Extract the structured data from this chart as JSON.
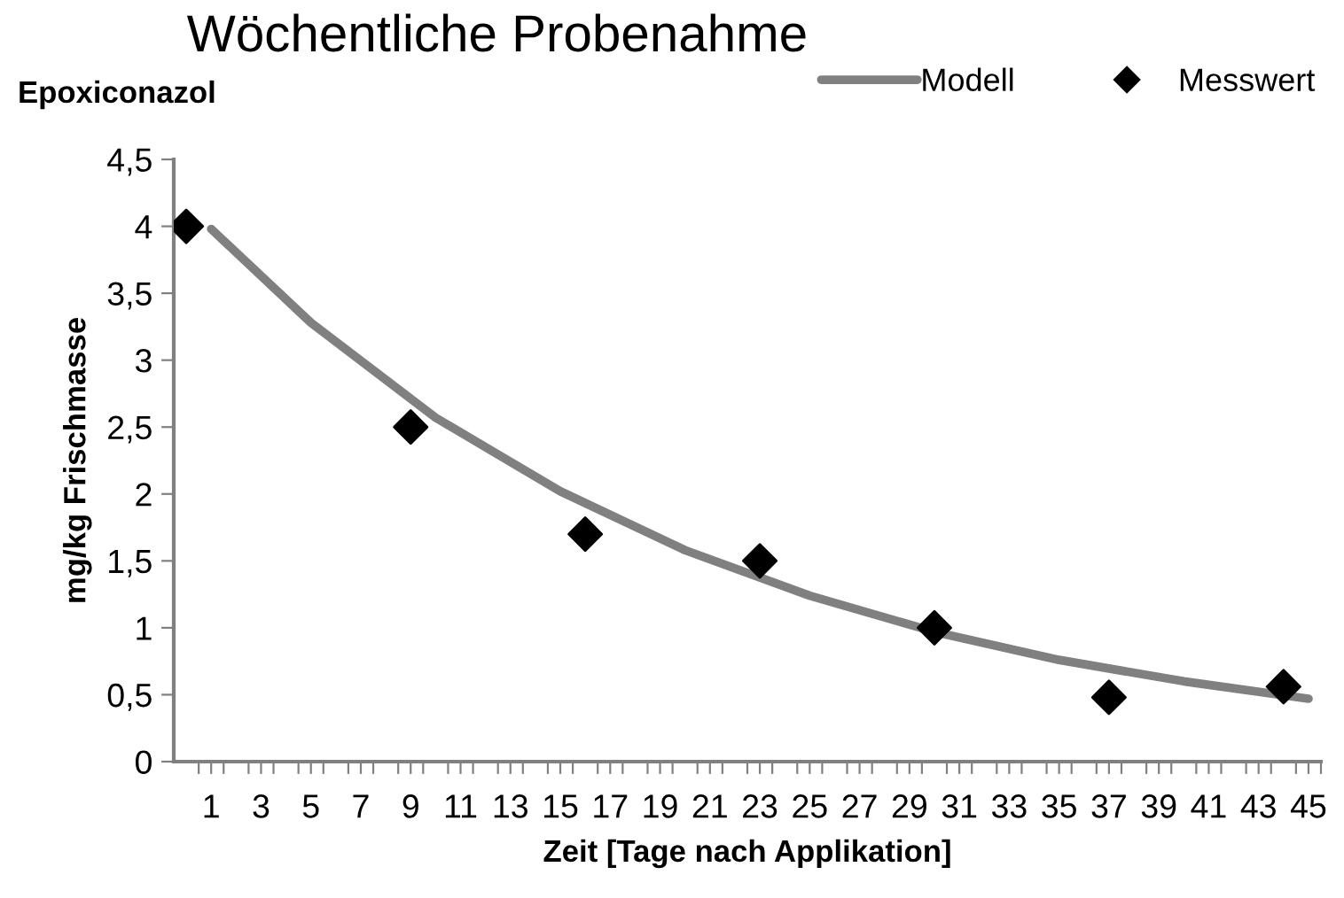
{
  "chart_data": {
    "type": "line",
    "title": "Wöchentliche Probenahme",
    "subtitle": "Epoxiconazol",
    "xlabel": "Zeit [Tage nach Applikation]",
    "ylabel": "mg/kg Frischmasse",
    "series": [
      {
        "name": "Modell",
        "color": "#808080",
        "marker": "none",
        "line_style": "solid",
        "x": [
          1,
          5,
          10,
          15,
          20,
          25,
          30,
          35,
          40,
          45
        ],
        "values": [
          3.98,
          3.28,
          2.57,
          2.02,
          1.58,
          1.24,
          0.97,
          0.76,
          0.6,
          0.47
        ]
      },
      {
        "name": "Messwert",
        "type": "scatter",
        "color": "#000000",
        "marker": "diamond",
        "x": [
          0,
          9,
          16,
          23,
          30,
          37,
          44
        ],
        "values": [
          4.0,
          2.5,
          1.7,
          1.5,
          1.0,
          0.48,
          0.56
        ]
      }
    ],
    "xlim": [
      -0.5,
      45.5
    ],
    "xticks": [
      1,
      3,
      5,
      7,
      9,
      11,
      13,
      15,
      17,
      19,
      21,
      23,
      25,
      27,
      29,
      31,
      33,
      35,
      37,
      39,
      41,
      43,
      45,
      {
        "value": 0.5,
        "label": null
      },
      {
        "value": 1.5,
        "label": null
      },
      {
        "value": 2.5,
        "label": null
      },
      {
        "value": 3.5,
        "label": null
      },
      {
        "value": 4.5,
        "label": null
      },
      {
        "value": 5.5,
        "label": null
      },
      {
        "value": 6.5,
        "label": null
      },
      {
        "value": 7.5,
        "label": null
      },
      {
        "value": 8.5,
        "label": null
      },
      {
        "value": 9.5,
        "label": null
      },
      {
        "value": 10.5,
        "label": null
      },
      {
        "value": 11.5,
        "label": null
      },
      {
        "value": 12.5,
        "label": null
      },
      {
        "value": 13.5,
        "label": null
      },
      {
        "value": 14.5,
        "label": null
      },
      {
        "value": 15.5,
        "label": null
      },
      {
        "value": 16.5,
        "label": null
      },
      {
        "value": 17.5,
        "label": null
      },
      {
        "value": 18.5,
        "label": null
      },
      {
        "value": 19.5,
        "label": null
      },
      {
        "value": 20.5,
        "label": null
      },
      {
        "value": 21.5,
        "label": null
      },
      {
        "value": 22.5,
        "label": null
      },
      {
        "value": 23.5,
        "label": null
      },
      {
        "value": 24.5,
        "label": null
      },
      {
        "value": 25.5,
        "label": null
      },
      {
        "value": 26.5,
        "label": null
      },
      {
        "value": 27.5,
        "label": null
      },
      {
        "value": 28.5,
        "label": null
      },
      {
        "value": 29.5,
        "label": null
      },
      {
        "value": 30.5,
        "label": null
      },
      {
        "value": 31.5,
        "label": null
      },
      {
        "value": 32.5,
        "label": null
      },
      {
        "value": 33.5,
        "label": null
      },
      {
        "value": 34.5,
        "label": null
      },
      {
        "value": 35.5,
        "label": null
      },
      {
        "value": 36.5,
        "label": null
      },
      {
        "value": 37.5,
        "label": null
      },
      {
        "value": 38.5,
        "label": null
      },
      {
        "value": 39.5,
        "label": null
      },
      {
        "value": 40.5,
        "label": null
      },
      {
        "value": 41.5,
        "label": null
      },
      {
        "value": 42.5,
        "label": null
      },
      {
        "value": 43.5,
        "label": null
      },
      {
        "value": 44.5,
        "label": null
      },
      {
        "value": 45.5,
        "label": null
      }
    ],
    "ylim": [
      0,
      4.5
    ],
    "yticks": [
      0,
      {
        "value": 0.5,
        "label": "0,5"
      },
      1,
      {
        "value": 1.5,
        "label": "1,5"
      },
      2,
      {
        "value": 2.5,
        "label": "2,5"
      },
      3,
      {
        "value": 3.5,
        "label": "3,5"
      },
      4,
      {
        "value": 4.5,
        "label": "4,5"
      }
    ],
    "grid": false,
    "legend": "top right"
  }
}
